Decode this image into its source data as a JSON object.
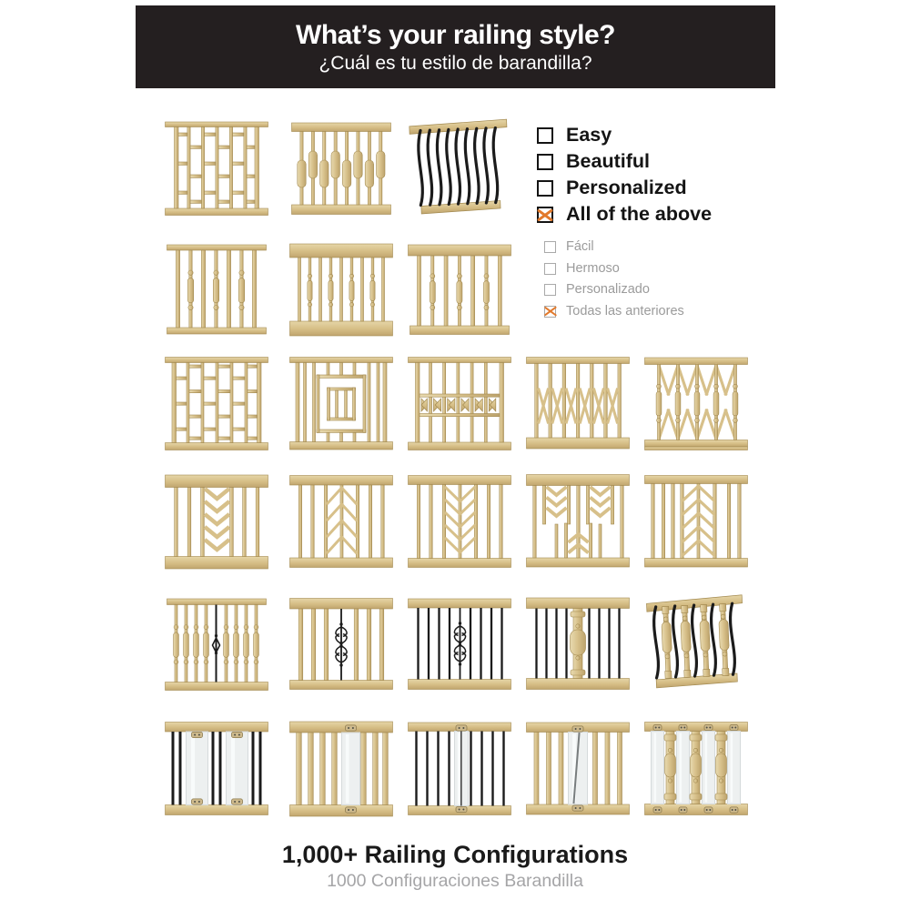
{
  "header": {
    "title": "What’s your railing style?",
    "subtitle": "¿Cuál es tu estilo de barandilla?"
  },
  "checklist_en": {
    "items": [
      {
        "label": "Easy",
        "checked": false
      },
      {
        "label": "Beautiful",
        "checked": false
      },
      {
        "label": "Personalized",
        "checked": false
      },
      {
        "label": "All of the above",
        "checked": true
      }
    ]
  },
  "checklist_es": {
    "items": [
      {
        "label": "Fácil",
        "checked": false
      },
      {
        "label": "Hermoso",
        "checked": false
      },
      {
        "label": "Personalizado",
        "checked": false
      },
      {
        "label": "Todas las anteriores",
        "checked": true
      }
    ]
  },
  "footer": {
    "title": "1,000+ Railing Configurations",
    "subtitle": "1000 Configuraciones Barandilla"
  },
  "colors": {
    "banner_bg": "#241f20",
    "accent_orange": "#e2792b",
    "wood": "#d7c08a",
    "wood_light": "#e8dab0",
    "wood_dark": "#a2894f",
    "metal": "#1b1b1b",
    "glass": "#edf0f0",
    "glass_edge": "#d5dadb",
    "bracket": "#cdb98c",
    "text_dark": "#141414",
    "text_gray": "#9b9b9b",
    "footer_gray": "#a5a5a7"
  },
  "railings": {
    "rows": [
      [
        "staggered-lattice",
        "oval-baluster",
        "black-arc-metal"
      ],
      [
        "turned-square-thin-rail",
        "turned-square-wide-rail",
        "turned-square-wide-rail-2"
      ],
      [
        "brick-lattice",
        "concentric-center",
        "chevron-band",
        "x-brace-band",
        "tall-diamond-turned"
      ],
      [
        "center-chevron-column",
        "center-leaf-column",
        "center-herringbone",
        "chevron-scatter",
        "wide-herringbone"
      ],
      [
        "wood-with-metal-accent",
        "wood-with-scroll",
        "metal-with-scroll",
        "metal-with-wood-column",
        "arc-and-turned-mix"
      ],
      [
        "glass-metal-pairs",
        "wood-glass-center",
        "metal-glass-center",
        "wood-glass-narrow",
        "glass-turned-columns"
      ]
    ]
  }
}
